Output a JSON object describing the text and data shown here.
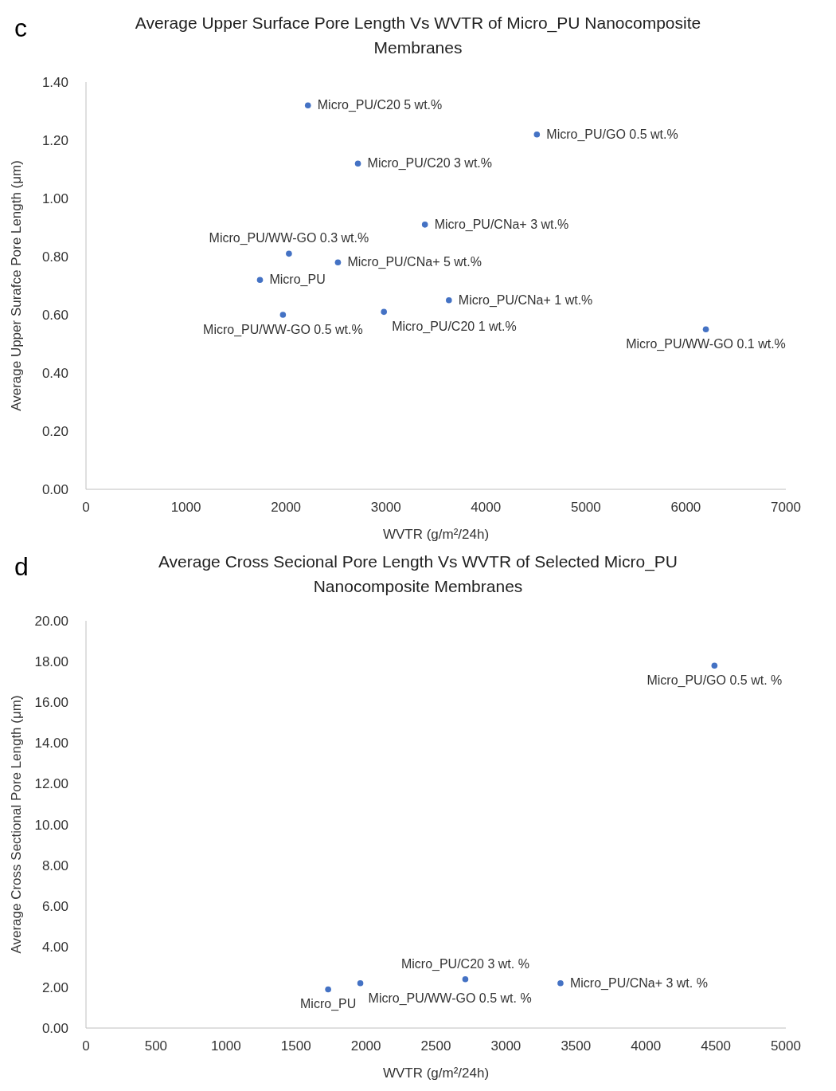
{
  "chart_data": [
    {
      "type": "scatter",
      "title": "Average Upper Surface Pore Length Vs WVTR of Micro_PU Nanocomposite Membranes",
      "xlabel": "WVTR (g/m²/24h)",
      "ylabel": "Average Upper Surafce Pore Length (μm)",
      "x": [
        2220,
        4510,
        2720,
        3390,
        2030,
        2520,
        1740,
        3630,
        1970,
        2980,
        6200
      ],
      "values": [
        1.32,
        1.22,
        1.12,
        0.91,
        0.81,
        0.78,
        0.72,
        0.65,
        0.6,
        0.61,
        0.55
      ],
      "color": "#4472c4",
      "marker": "circle",
      "grid": false,
      "xlim": [
        0,
        7000
      ],
      "xticks": [
        0,
        1000,
        2000,
        3000,
        4000,
        5000,
        6000,
        7000
      ],
      "ylim": [
        0,
        1.4
      ],
      "yticks": [
        {
          "value": 0,
          "label": "0.00"
        },
        {
          "value": 0.2,
          "label": "0.20"
        },
        {
          "value": 0.4,
          "label": "0.40"
        },
        {
          "value": 0.6,
          "label": "0.60"
        },
        {
          "value": 0.8,
          "label": "0.80"
        },
        {
          "value": 1,
          "label": "1.00"
        },
        {
          "value": 1.2,
          "label": "1.20"
        },
        {
          "value": 1.4,
          "label": "1.40"
        }
      ],
      "annotations": [
        "c",
        {
          "text": "Micro_PU/C20 5 wt.%",
          "x": 2220,
          "y": 1.32
        },
        {
          "text": "Micro_PU/GO 0.5 wt.%",
          "x": 4510,
          "y": 1.22
        },
        {
          "text": "Micro_PU/C20 3 wt.%",
          "x": 2720,
          "y": 1.12
        },
        {
          "text": "Micro_PU/CNa+ 3 wt.%",
          "x": 3390,
          "y": 0.91
        },
        {
          "text": "Micro_PU/WW-GO 0.3 wt.%",
          "x": 2030,
          "y": 0.81
        },
        {
          "text": "Micro_PU/CNa+ 5 wt.%",
          "x": 2520,
          "y": 0.78
        },
        {
          "text": "Micro_PU",
          "x": 1740,
          "y": 0.72
        },
        {
          "text": "Micro_PU/CNa+ 1 wt.%",
          "x": 3630,
          "y": 0.65
        },
        {
          "text": "Micro_PU/WW-GO 0.5 wt.%",
          "x": 1970,
          "y": 0.6
        },
        {
          "text": "Micro_PU/C20 1 wt.%",
          "x": 2980,
          "y": 0.61
        },
        {
          "text": "Micro_PU/WW-GO 0.1 wt.%",
          "x": 6200,
          "y": 0.55
        }
      ]
    },
    {
      "type": "scatter",
      "title": "Average Cross Secional Pore Length Vs WVTR of Selected Micro_PU Nanocomposite Membranes",
      "xlabel": "WVTR (g/m²/24h)",
      "ylabel": "Average Cross Sectional Pore Length (μm)",
      "x": [
        4490,
        1730,
        1960,
        2710,
        3390
      ],
      "values": [
        17.8,
        1.9,
        2.2,
        2.4,
        2.2
      ],
      "color": "#4472c4",
      "marker": "circle",
      "grid": false,
      "xlim": [
        0,
        5000
      ],
      "xticks": [
        0,
        500,
        1000,
        1500,
        2000,
        2500,
        3000,
        3500,
        4000,
        4500,
        5000
      ],
      "ylim": [
        0,
        20
      ],
      "yticks": [
        {
          "value": 0,
          "label": "0.00"
        },
        {
          "value": 2,
          "label": "2.00"
        },
        {
          "value": 4,
          "label": "4.00"
        },
        {
          "value": 6,
          "label": "6.00"
        },
        {
          "value": 8,
          "label": "8.00"
        },
        {
          "value": 10,
          "label": "10.00"
        },
        {
          "value": 12,
          "label": "12.00"
        },
        {
          "value": 14,
          "label": "14.00"
        },
        {
          "value": 16,
          "label": "16.00"
        },
        {
          "value": 18,
          "label": "18.00"
        },
        {
          "value": 20,
          "label": "20.00"
        }
      ],
      "annotations": [
        "d",
        {
          "text": "Micro_PU/GO 0.5 wt. %",
          "x": 4490,
          "y": 17.8
        },
        {
          "text": "Micro_PU",
          "x": 1730,
          "y": 1.9
        },
        {
          "text": "Micro_PU/WW-GO 0.5 wt. %",
          "x": 1960,
          "y": 2.2
        },
        {
          "text": "Micro_PU/C20 3 wt. %",
          "x": 2710,
          "y": 2.4
        },
        {
          "text": "Micro_PU/CNa+ 3 wt. %",
          "x": 3390,
          "y": 2.2
        }
      ]
    }
  ]
}
